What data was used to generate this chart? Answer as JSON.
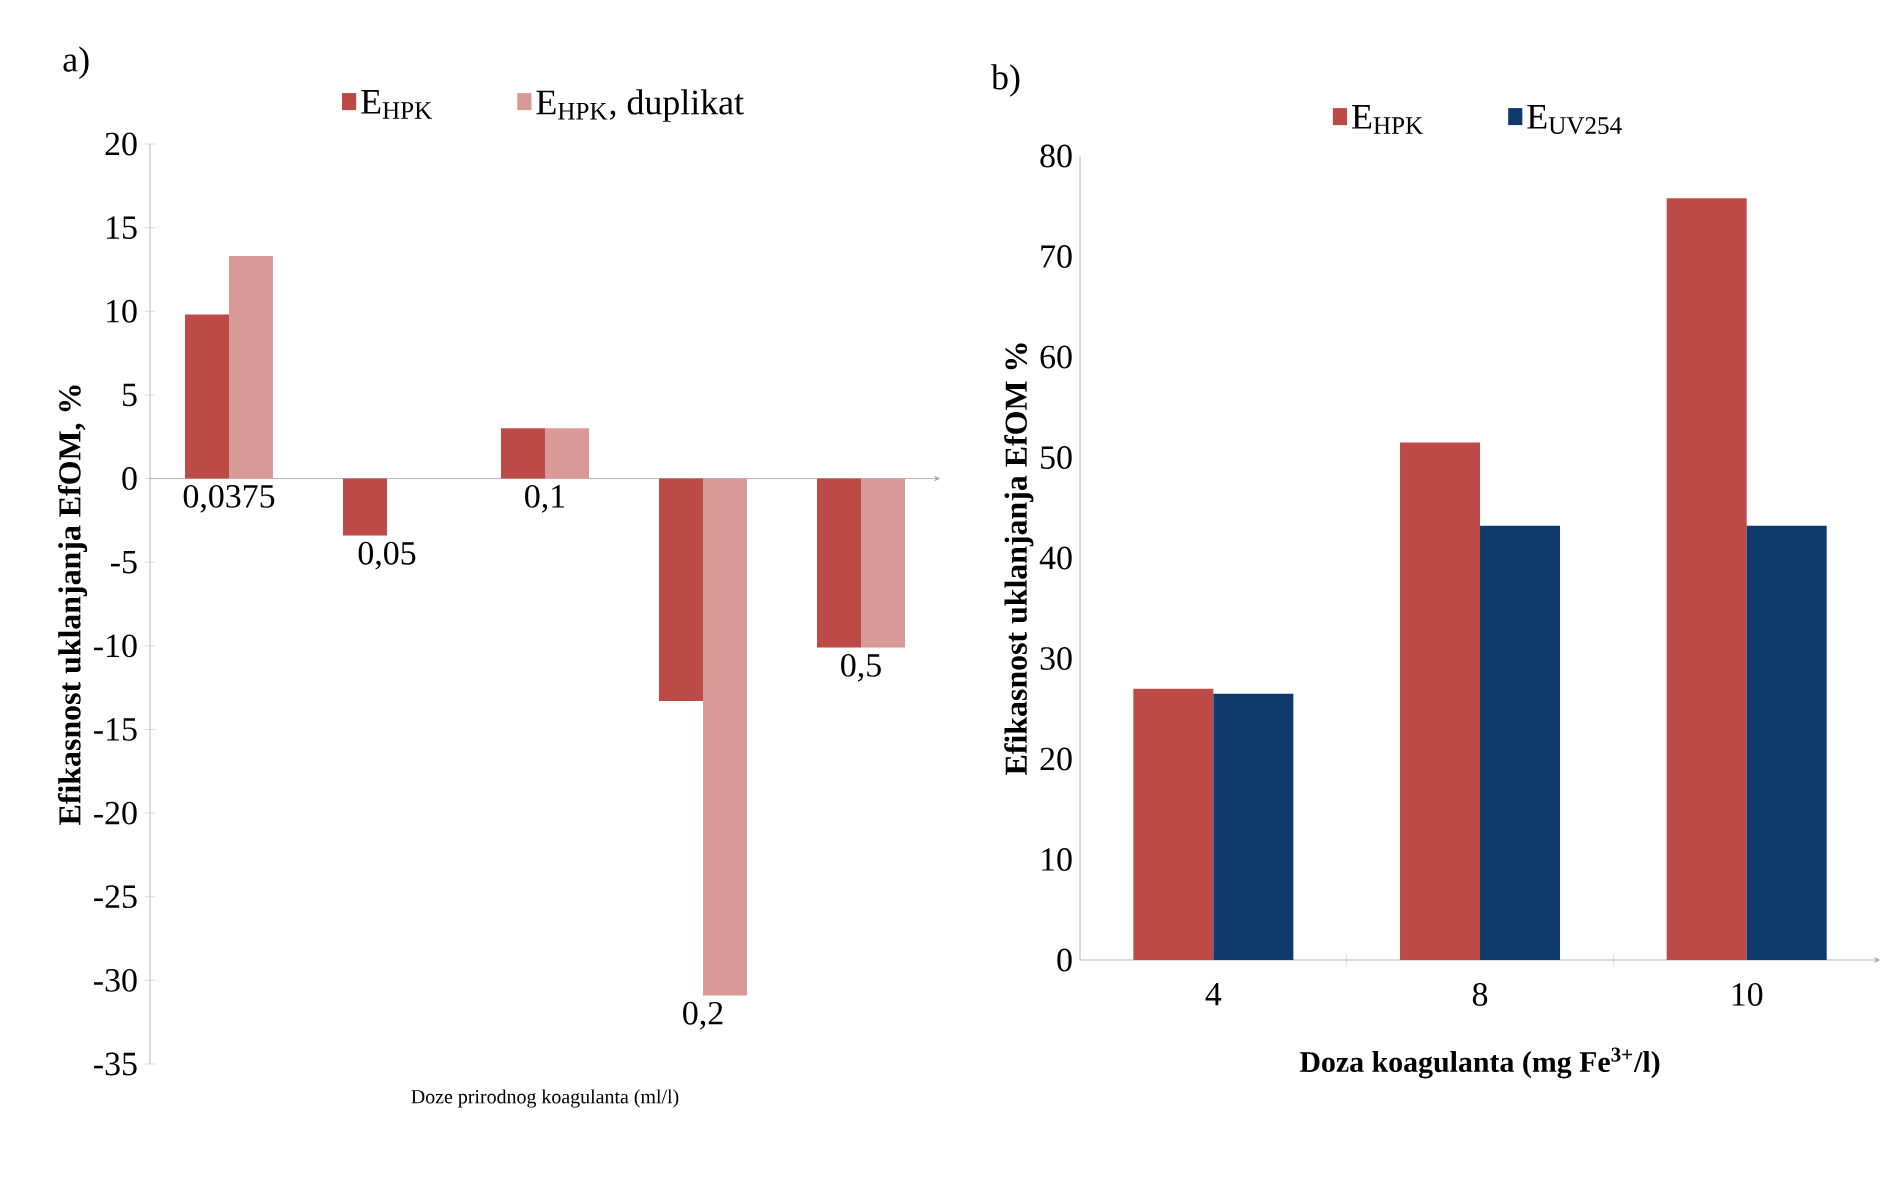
{
  "chart_data": [
    {
      "type": "bar",
      "title": "a)",
      "xlabel": "Doze prirodnog koagulanta (ml/l)",
      "ylabel": "Efikasnost uklanjanja  EfOM, %",
      "categories": [
        "0,0375",
        "0,05",
        "0,1",
        "0,2",
        "0,5"
      ],
      "series": [
        {
          "name": "E$_{HPK}$",
          "color": "#bc4b48",
          "values": [
            9.8,
            -3.4,
            3.0,
            -13.3,
            -10.1
          ]
        },
        {
          "name": "E$_{HPK}$, duplikat",
          "color": "#d99a97",
          "values": [
            13.3,
            null,
            3.0,
            -30.9,
            -10.1
          ]
        }
      ],
      "ylim": [
        -35,
        20
      ],
      "yticks": [
        -35,
        -30,
        -25,
        -20,
        -15,
        -10,
        -5,
        0,
        5,
        10,
        15,
        20
      ],
      "legend": "top",
      "grid": false
    },
    {
      "type": "bar",
      "title": "b)",
      "xlabel": "Doza koagulanta (mg Fe$^{3+}$/l)",
      "ylabel": "Efikasnost uklanjanja  EfOM  %",
      "categories": [
        "4",
        "8",
        "10"
      ],
      "series": [
        {
          "name": "E$_{HPK}$",
          "color": "#bc4b48",
          "values": [
            27.0,
            51.5,
            75.8
          ]
        },
        {
          "name": "E$_{UV254}$",
          "color": "#0f3a6b",
          "values": [
            26.5,
            43.2,
            43.2
          ]
        }
      ],
      "ylim": [
        0,
        80
      ],
      "yticks": [
        0,
        10,
        20,
        30,
        40,
        50,
        60,
        70,
        80
      ],
      "legend": "top",
      "grid": false
    }
  ]
}
